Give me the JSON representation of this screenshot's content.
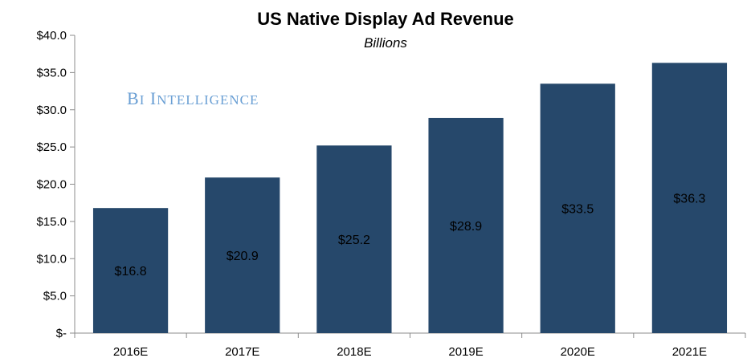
{
  "chart_data": {
    "type": "bar",
    "title": "US Native Display Ad Revenue",
    "subtitle": "Billions",
    "categories": [
      "2016E",
      "2017E",
      "2018E",
      "2019E",
      "2020E",
      "2021E"
    ],
    "values": [
      16.8,
      20.9,
      25.2,
      28.9,
      33.5,
      36.3
    ],
    "data_labels": [
      "$16.8",
      "$20.9",
      "$25.2",
      "$28.9",
      "$33.5",
      "$36.3"
    ],
    "y_ticks": [
      {
        "value": 0,
        "label": "$-"
      },
      {
        "value": 5,
        "label": "$5.0"
      },
      {
        "value": 10,
        "label": "$10.0"
      },
      {
        "value": 15,
        "label": "$15.0"
      },
      {
        "value": 20,
        "label": "$20.0"
      },
      {
        "value": 25,
        "label": "$25.0"
      },
      {
        "value": 30,
        "label": "$30.0"
      },
      {
        "value": 35,
        "label": "$35.0"
      },
      {
        "value": 40,
        "label": "$40.0"
      }
    ],
    "ylim": [
      0,
      40
    ],
    "xlabel": "",
    "ylabel": "",
    "grid": false,
    "legend": "none",
    "bar_color": "#26486b"
  },
  "watermark": {
    "text": "BI Intelligence",
    "color": "#6a9fd4"
  }
}
